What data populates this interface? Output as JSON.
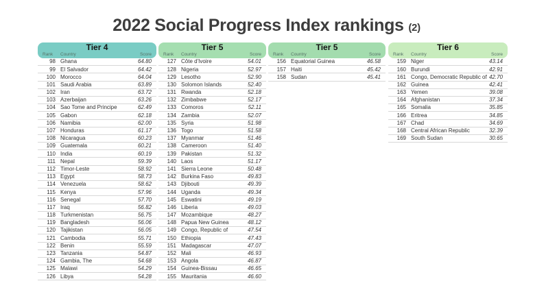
{
  "chart_data": {
    "type": "table",
    "title": "2022 Social Progress Index rankings (2)",
    "title_main": "2022 Social Progress Index rankings",
    "title_suffix": "(2)",
    "columns": [
      "Rank",
      "Country",
      "Score"
    ],
    "groups": [
      {
        "label": "Tier 4",
        "color": "#7accc4",
        "rows": [
          [
            98,
            "Ghana",
            "64.80"
          ],
          [
            99,
            "El Salvador",
            "64.42"
          ],
          [
            100,
            "Morocco",
            "64.04"
          ],
          [
            101,
            "Saudi Arabia",
            "63.89"
          ],
          [
            102,
            "Iran",
            "63.72"
          ],
          [
            103,
            "Azerbaijan",
            "63.26"
          ],
          [
            104,
            "Sao Tome and Principe",
            "62.49"
          ],
          [
            105,
            "Gabon",
            "62.18"
          ],
          [
            106,
            "Namibia",
            "62.00"
          ],
          [
            107,
            "Honduras",
            "61.17"
          ],
          [
            108,
            "Nicaragua",
            "60.23"
          ],
          [
            109,
            "Guatemala",
            "60.21"
          ],
          [
            110,
            "India",
            "60.19"
          ],
          [
            111,
            "Nepal",
            "59.39"
          ],
          [
            112,
            "Timor-Leste",
            "58.92"
          ],
          [
            113,
            "Egypt",
            "58.73"
          ],
          [
            114,
            "Venezuela",
            "58.62"
          ],
          [
            115,
            "Kenya",
            "57.96"
          ],
          [
            116,
            "Senegal",
            "57.70"
          ],
          [
            117,
            "Iraq",
            "56.82"
          ],
          [
            118,
            "Turkmenistan",
            "56.75"
          ],
          [
            119,
            "Bangladesh",
            "56.06"
          ],
          [
            120,
            "Tajikistan",
            "56.05"
          ],
          [
            121,
            "Cambodia",
            "55.71"
          ],
          [
            122,
            "Benin",
            "55.59"
          ],
          [
            123,
            "Tanzania",
            "54.87"
          ],
          [
            124,
            "Gambia, The",
            "54.68"
          ],
          [
            125,
            "Malawi",
            "54.29"
          ],
          [
            126,
            "Libya",
            "54.28"
          ]
        ]
      },
      {
        "label": "Tier 5",
        "color": "#a5deb0",
        "rows": [
          [
            127,
            "Côte d'Ivoire",
            "54.01"
          ],
          [
            128,
            "Nigeria",
            "52.97"
          ],
          [
            129,
            "Lesotho",
            "52.90"
          ],
          [
            130,
            "Solomon Islands",
            "52.40"
          ],
          [
            131,
            "Rwanda",
            "52.18"
          ],
          [
            132,
            "Zimbabwe",
            "52.17"
          ],
          [
            133,
            "Comoros",
            "52.11"
          ],
          [
            134,
            "Zambia",
            "52.07"
          ],
          [
            135,
            "Syria",
            "51.98"
          ],
          [
            136,
            "Togo",
            "51.58"
          ],
          [
            137,
            "Myanmar",
            "51.46"
          ],
          [
            138,
            "Cameroon",
            "51.40"
          ],
          [
            139,
            "Pakistan",
            "51.32"
          ],
          [
            140,
            "Laos",
            "51.17"
          ],
          [
            141,
            "Sierra Leone",
            "50.48"
          ],
          [
            142,
            "Burkina Faso",
            "49.83"
          ],
          [
            143,
            "Djibouti",
            "49.39"
          ],
          [
            144,
            "Uganda",
            "49.34"
          ],
          [
            145,
            "Eswatini",
            "49.19"
          ],
          [
            146,
            "Liberia",
            "49.03"
          ],
          [
            147,
            "Mozambique",
            "48.27"
          ],
          [
            148,
            "Papua New Guinea",
            "48.12"
          ],
          [
            149,
            "Congo, Republic of",
            "47.54"
          ],
          [
            150,
            "Ethiopia",
            "47.43"
          ],
          [
            151,
            "Madagascar",
            "47.07"
          ],
          [
            152,
            "Mali",
            "46.93"
          ],
          [
            153,
            "Angola",
            "46.87"
          ],
          [
            154,
            "Guinea-Bissau",
            "46.65"
          ],
          [
            155,
            "Mauritania",
            "46.60"
          ]
        ]
      },
      {
        "label": "Tier 5",
        "color": "#a3dcae",
        "rows": [
          [
            156,
            "Equatorial Guinea",
            "46.58"
          ],
          [
            157,
            "Haiti",
            "45.42"
          ],
          [
            158,
            "Sudan",
            "45.41"
          ]
        ]
      },
      {
        "label": "Tier 6",
        "color": "#c8ecbd",
        "rows": [
          [
            159,
            "Niger",
            "43.14"
          ],
          [
            160,
            "Burundi",
            "42.91"
          ],
          [
            161,
            "Congo, Democratic Republic of",
            "42.70"
          ],
          [
            162,
            "Guinea",
            "42.41"
          ],
          [
            163,
            "Yemen",
            "39.08"
          ],
          [
            164,
            "Afghanistan",
            "37.34"
          ],
          [
            165,
            "Somalia",
            "35.85"
          ],
          [
            166,
            "Eritrea",
            "34.85"
          ],
          [
            167,
            "Chad",
            "34.69"
          ],
          [
            168,
            "Central African Republic",
            "32.39"
          ],
          [
            169,
            "South Sudan",
            "30.65"
          ]
        ]
      }
    ]
  }
}
